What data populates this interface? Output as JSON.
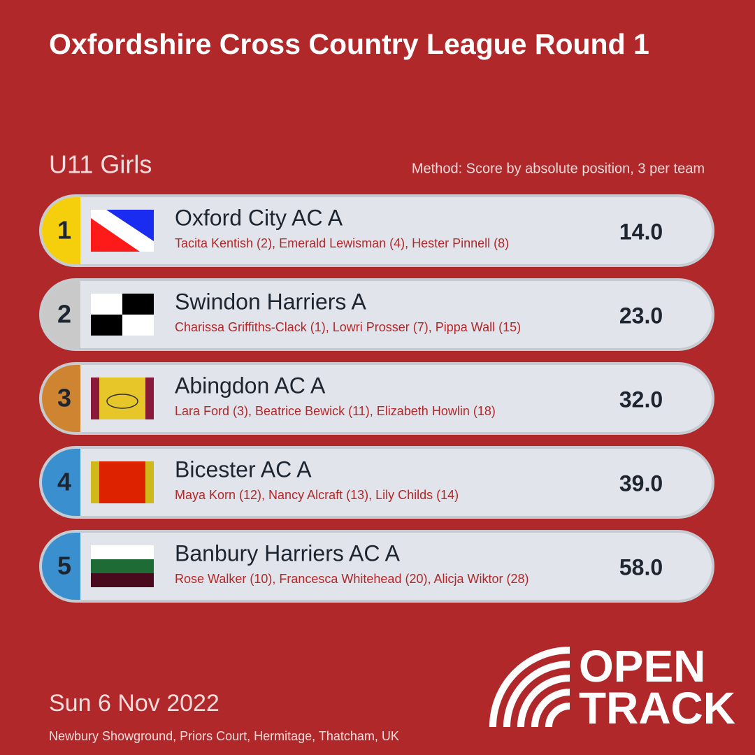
{
  "header": {
    "title": "Oxfordshire Cross Country League Round 1"
  },
  "category": "U11 Girls",
  "method": "Method: Score by absolute position, 3 per team",
  "rows": [
    {
      "rank": "1",
      "team": "Oxford City AC A",
      "members": "Tacita Kentish (2), Emerald Lewisman (4), Hester Pinnell (8)",
      "score": "14.0"
    },
    {
      "rank": "2",
      "team": "Swindon Harriers A",
      "members": "Charissa Griffiths-Clack (1), Lowri Prosser (7), Pippa Wall (15)",
      "score": "23.0"
    },
    {
      "rank": "3",
      "team": "Abingdon AC A",
      "members": "Lara Ford (3), Beatrice Bewick (11), Elizabeth Howlin (18)",
      "score": "32.0"
    },
    {
      "rank": "4",
      "team": "Bicester AC A",
      "members": "Maya Korn (12), Nancy Alcraft (13), Lily Childs (14)",
      "score": "39.0"
    },
    {
      "rank": "5",
      "team": "Banbury Harriers AC A",
      "members": "Rose Walker (10), Francesca Whitehead (20), Alicja Wiktor (28)",
      "score": "58.0"
    }
  ],
  "footer": {
    "date": "Sun 6 Nov 2022",
    "venue": "Newbury Showground, Priors Court, Hermitage, Thatcham, UK"
  },
  "logo": {
    "line1": "OPEN",
    "line2": "TRACK"
  }
}
